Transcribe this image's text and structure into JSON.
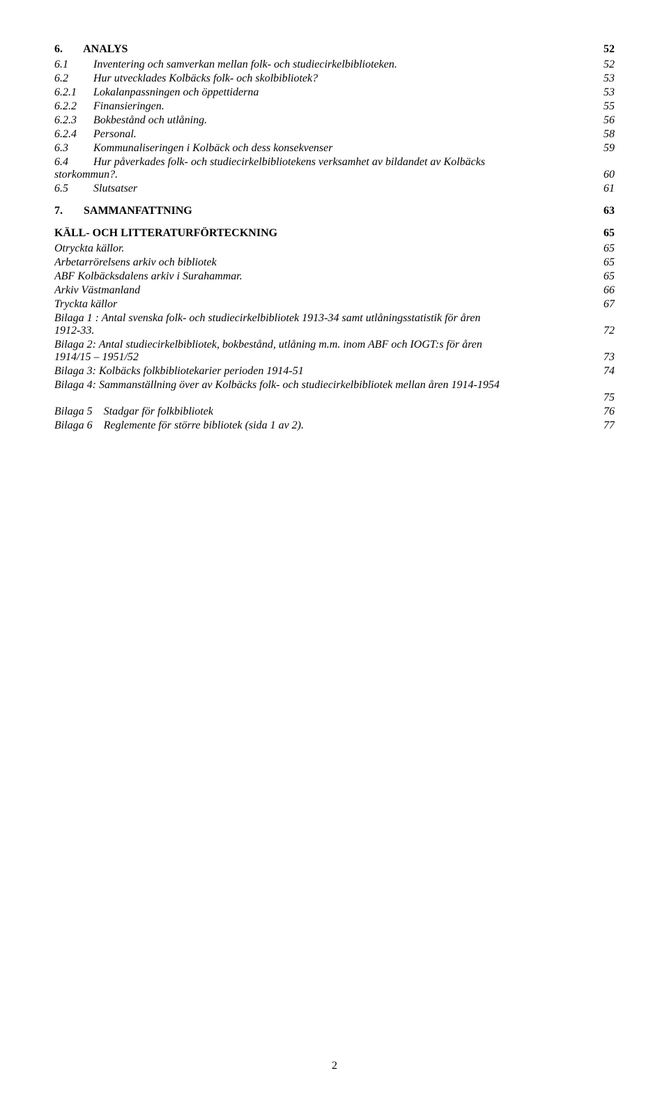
{
  "page_number": "2",
  "toc": [
    {
      "level": 1,
      "num": "6.",
      "title": "ANALYS",
      "page": "52"
    },
    {
      "level": 2,
      "num": "6.1",
      "title": "Inventering och samverkan mellan folk- och studiecirkelbiblioteken.",
      "page": "52"
    },
    {
      "level": 2,
      "num": "6.2",
      "title": "Hur utvecklades Kolbäcks folk- och skolbibliotek?",
      "page": "53"
    },
    {
      "level": 2,
      "num": "6.2.1",
      "title": "Lokalanpassningen och öppettiderna",
      "page": "53"
    },
    {
      "level": 2,
      "num": "6.2.2",
      "title": "Finansieringen.",
      "page": "55"
    },
    {
      "level": 2,
      "num": "6.2.3",
      "title": "Bokbestånd och utlåning.",
      "page": "56"
    },
    {
      "level": 2,
      "num": "6.2.4",
      "title": "Personal.",
      "page": "58"
    },
    {
      "level": 2,
      "num": "6.3",
      "title": "Kommunaliseringen i Kolbäck och dess konsekvenser",
      "page": "59"
    },
    {
      "level": 2,
      "num": "6.4",
      "title": "Hur påverkades folk- och studiecirkelbibliotekens verksamhet av bildandet av Kolbäcks",
      "cont": "storkommun?.",
      "page": "60"
    },
    {
      "level": 2,
      "num": "6.5",
      "title": "Slutsatser",
      "page": "61"
    },
    {
      "level": 1,
      "num": "7.",
      "title": "SAMMANFATTNING",
      "page": "63"
    },
    {
      "level": 1,
      "num": "",
      "title": "KÄLL- OCH LITTERATURFÖRTECKNING",
      "page": "65"
    },
    {
      "level": 2,
      "num": "",
      "title": "Otryckta källor.",
      "page": "65"
    },
    {
      "level": 2,
      "num": "",
      "title": "Arbetarrörelsens arkiv och bibliotek",
      "page": "65"
    },
    {
      "level": 2,
      "num": "",
      "title": "ABF Kolbäcksdalens arkiv i Surahammar.",
      "page": "65"
    },
    {
      "level": 2,
      "num": "",
      "title": "Arkiv Västmanland",
      "page": "66"
    },
    {
      "level": 2,
      "num": "",
      "title": "Tryckta källor",
      "page": "67"
    },
    {
      "level": 2,
      "num": "",
      "title": "Bilaga 1 : Antal svenska folk- och studiecirkelbibliotek 1913-34 samt utlåningsstatistik för åren",
      "cont": "1912-33.",
      "page": "72"
    },
    {
      "level": 2,
      "num": "",
      "title": "Bilaga 2: Antal studiecirkelbibliotek, bokbestånd, utlåning m.m. inom ABF och IOGT:s för åren",
      "cont": "1914/15 – 1951/52",
      "page": "73"
    },
    {
      "level": 2,
      "num": "",
      "title": "Bilaga 3: Kolbäcks folkbibliotekarier perioden 1914-51",
      "page": "74"
    },
    {
      "level": 2,
      "num": "",
      "title": "Bilaga 4: Sammanställning över av Kolbäcks folk- och studiecirkelbibliotek mellan åren 1914-1954",
      "cont": "",
      "page": "75"
    },
    {
      "level": 2,
      "num": "",
      "title": "Bilaga 5 Stadgar för folkbibliotek",
      "page": "76"
    },
    {
      "level": 2,
      "num": "",
      "title": "Bilaga 6 Reglemente för större bibliotek (sida 1 av 2).",
      "page": "77"
    }
  ]
}
